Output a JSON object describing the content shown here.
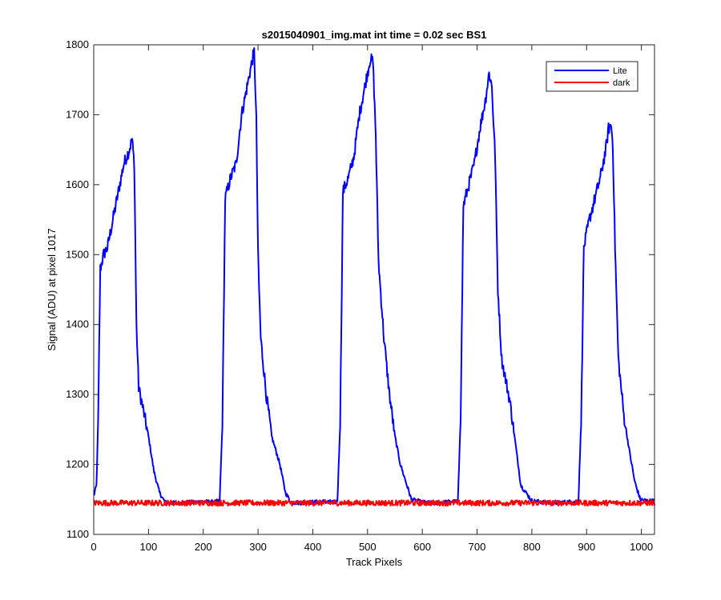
{
  "chart_data": {
    "type": "line",
    "title": "s2015040901_img.mat int time = 0.02 sec   BS1",
    "xlabel": "Track Pixels",
    "ylabel": "Signal (ADU) at pixel 1017",
    "xlim": [
      0,
      1024
    ],
    "ylim": [
      1100,
      1800
    ],
    "x_ticks": [
      0,
      100,
      200,
      300,
      400,
      500,
      600,
      700,
      800,
      900,
      1000
    ],
    "y_ticks": [
      1100,
      1200,
      1300,
      1400,
      1500,
      1600,
      1700,
      1800
    ],
    "grid": false,
    "legend_position": "top-right",
    "series": [
      {
        "name": "Lite",
        "color": "#0000ff",
        "x": [
          0,
          5,
          8,
          12,
          18,
          25,
          35,
          45,
          55,
          65,
          70,
          74,
          78,
          82,
          90,
          100,
          110,
          120,
          130,
          140,
          160,
          180,
          200,
          220,
          230,
          235,
          240,
          250,
          260,
          270,
          280,
          290,
          293,
          297,
          300,
          305,
          315,
          325,
          340,
          350,
          360,
          380,
          400,
          420,
          440,
          445,
          450,
          455,
          465,
          475,
          485,
          495,
          505,
          510,
          515,
          520,
          530,
          540,
          550,
          560,
          580,
          600,
          620,
          640,
          660,
          665,
          670,
          675,
          685,
          695,
          705,
          715,
          722,
          727,
          733,
          738,
          745,
          760,
          770,
          780,
          800,
          820,
          840,
          860,
          880,
          885,
          890,
          895,
          905,
          915,
          925,
          935,
          940,
          945,
          948,
          952,
          958,
          968,
          978,
          988,
          998,
          1010,
          1024
        ],
        "y": [
          1155,
          1170,
          1260,
          1480,
          1500,
          1510,
          1550,
          1590,
          1630,
          1650,
          1665,
          1630,
          1400,
          1310,
          1280,
          1240,
          1190,
          1160,
          1146,
          1145,
          1145,
          1146,
          1147,
          1146,
          1148,
          1260,
          1580,
          1610,
          1630,
          1700,
          1740,
          1780,
          1790,
          1690,
          1500,
          1380,
          1300,
          1240,
          1200,
          1160,
          1146,
          1145,
          1146,
          1147,
          1146,
          1148,
          1260,
          1590,
          1610,
          1640,
          1700,
          1740,
          1780,
          1775,
          1670,
          1490,
          1380,
          1300,
          1240,
          1200,
          1150,
          1146,
          1145,
          1146,
          1147,
          1148,
          1270,
          1570,
          1600,
          1630,
          1680,
          1720,
          1760,
          1740,
          1640,
          1450,
          1350,
          1290,
          1230,
          1170,
          1148,
          1146,
          1145,
          1146,
          1147,
          1148,
          1260,
          1510,
          1550,
          1580,
          1610,
          1650,
          1680,
          1685,
          1655,
          1510,
          1350,
          1270,
          1220,
          1175,
          1150,
          1148,
          1148
        ]
      },
      {
        "name": "dark",
        "color": "#ff0000",
        "x": [
          0,
          1024
        ],
        "y": [
          1145,
          1145
        ],
        "noise_amplitude": 4
      }
    ]
  }
}
